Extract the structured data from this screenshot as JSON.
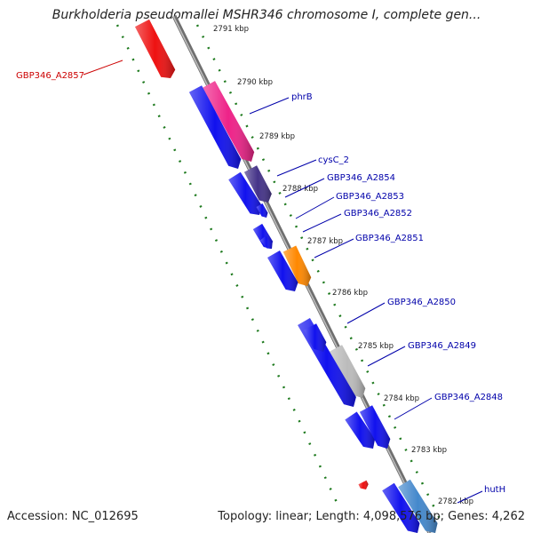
{
  "title": "Burkholderia pseudomallei MSHR346 chromosome I, complete gen...",
  "footer": {
    "accession": "Accession: NC_012695",
    "stats": "Topology: linear; Length: 4,098,576 bp; Genes: 4,262"
  },
  "colors": {
    "backbone": "#8c8c8c",
    "tick_line": "#1e7a1e",
    "label_text": "#0000aa",
    "highlight_label": "#cc0000"
  },
  "scale_ticks": [
    "2791 kbp",
    "2790 kbp",
    "2789 kbp",
    "2788 kbp",
    "2787 kbp",
    "2786 kbp",
    "2785 kbp",
    "2784 kbp",
    "2783 kbp",
    "2782 kbp"
  ],
  "genes": [
    {
      "label": "GBP346_A2857",
      "color": "#ee1111",
      "strand": "reverse",
      "highlight": true
    },
    {
      "label": "phrB",
      "color": "#ee2288",
      "strand": "reverse"
    },
    {
      "label": "cysC_2",
      "color": "#1111ee",
      "strand": "forward"
    },
    {
      "label": "GBP346_A2854",
      "color": "#443388",
      "strand": "reverse"
    },
    {
      "label": "GBP346_A2853",
      "color": "#1111ee",
      "strand": "forward"
    },
    {
      "label": "GBP346_A2852",
      "color": "#1111ee",
      "strand": "forward"
    },
    {
      "label": "GBP346_A2851",
      "color": "#ff8800",
      "strand": "reverse"
    },
    {
      "label": "GBP346_A2850",
      "color": "#1111ee",
      "strand": "forward"
    },
    {
      "label": "GBP346_A2849",
      "color": "#bbbbbb",
      "strand": "reverse"
    },
    {
      "label": "GBP346_A2848",
      "color": "#1111ee",
      "strand": "forward"
    },
    {
      "label": "hutH",
      "color": "#4488cc",
      "strand": "reverse"
    }
  ]
}
